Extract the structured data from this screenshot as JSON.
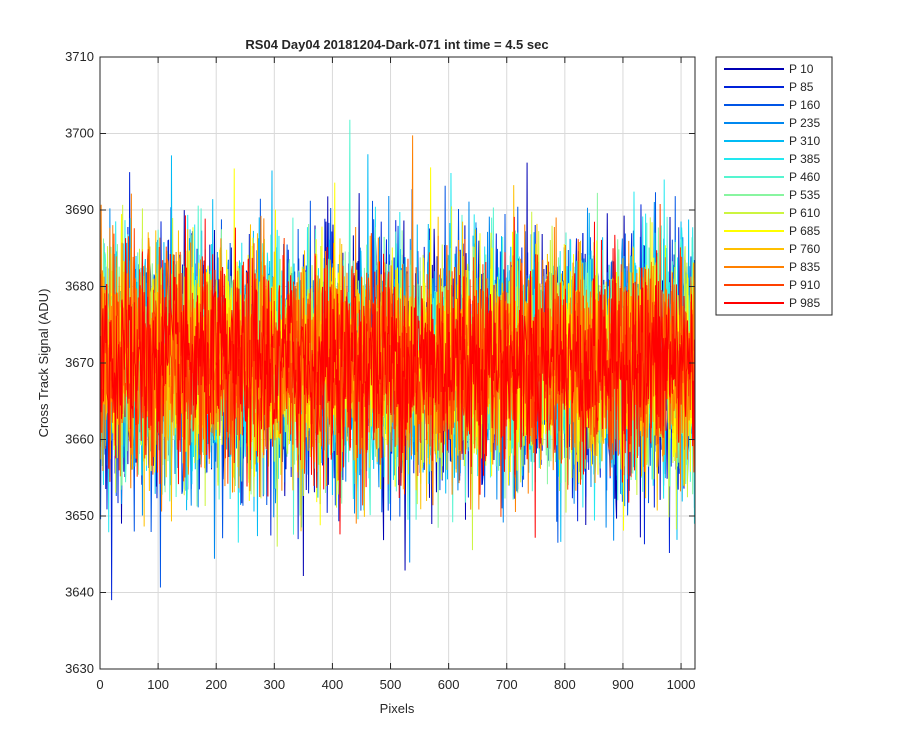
{
  "chart_data": {
    "type": "line",
    "title": "RS04 Day04 20181204-Dark-071 int time = 4.5 sec",
    "xlabel": "Pixels",
    "ylabel": "Cross Track Signal (ADU)",
    "xlim": [
      0,
      1024
    ],
    "ylim": [
      3630,
      3710
    ],
    "xticks": [
      0,
      100,
      200,
      300,
      400,
      500,
      600,
      700,
      800,
      900,
      1000
    ],
    "yticks": [
      3630,
      3640,
      3650,
      3660,
      3670,
      3680,
      3690,
      3700,
      3710
    ],
    "grid": true,
    "legend_position": "outside-top-right",
    "signal_mean": 3670,
    "signal_noise_sigma": 8,
    "series": [
      {
        "name": "P 10",
        "color": "#0000b3"
      },
      {
        "name": "P 85",
        "color": "#0022d9"
      },
      {
        "name": "P 160",
        "color": "#0055e6"
      },
      {
        "name": "P 235",
        "color": "#0088f0"
      },
      {
        "name": "P 310",
        "color": "#00bbf5"
      },
      {
        "name": "P 385",
        "color": "#22e8f0"
      },
      {
        "name": "P 460",
        "color": "#55f5d0"
      },
      {
        "name": "P 535",
        "color": "#88f5a0"
      },
      {
        "name": "P 610",
        "color": "#ccf540"
      },
      {
        "name": "P 685",
        "color": "#ffff00"
      },
      {
        "name": "P 760",
        "color": "#ffc000"
      },
      {
        "name": "P 835",
        "color": "#ff8000"
      },
      {
        "name": "P 910",
        "color": "#ff4000"
      },
      {
        "name": "P 985",
        "color": "#ff0000"
      }
    ]
  }
}
